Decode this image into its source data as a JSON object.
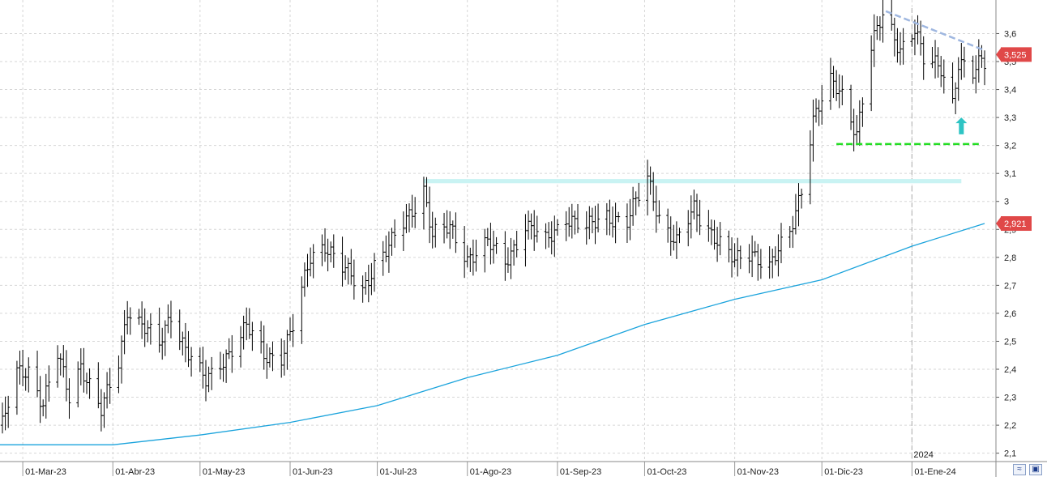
{
  "chart_data": {
    "type": "ohlc",
    "title": "",
    "xlabel": "",
    "ylabel": "",
    "ylim": [
      2.07,
      3.72
    ],
    "y_ticks": [
      "2,1",
      "2,2",
      "2,3",
      "2,4",
      "2,5",
      "2,6",
      "2,7",
      "2,8",
      "2,9",
      "3",
      "3,1",
      "3,2",
      "3,3",
      "3,4",
      "3,5",
      "3,6"
    ],
    "x_ticks": [
      "01-Mar-23",
      "01-Abr-23",
      "01-May-23",
      "01-Jun-23",
      "01-Jul-23",
      "01-Ago-23",
      "01-Sep-23",
      "01-Oct-23",
      "01-Nov-23",
      "01-Dic-23",
      "01-Ene-24"
    ],
    "year_label": "2024",
    "last_price_label": "3,525",
    "ma_label": "2,921",
    "grid": true,
    "colors": {
      "bars": "#000000",
      "moving_average": "#1aa3dc",
      "resistance_band": "#c9f3f3",
      "support_line": "#22dd22",
      "trend_line": "#9fb7e0",
      "arrow": "#2ec4c4",
      "price_tag": "#e04848"
    },
    "series": [
      {
        "kind": "price_anchors",
        "points": [
          [
            "2023-02-22",
            2.2
          ],
          [
            "2023-02-27",
            2.38
          ],
          [
            "2023-03-03",
            2.4
          ],
          [
            "2023-03-08",
            2.28
          ],
          [
            "2023-03-13",
            2.45
          ],
          [
            "2023-03-17",
            2.3
          ],
          [
            "2023-03-21",
            2.42
          ],
          [
            "2023-03-28",
            2.25
          ],
          [
            "2023-04-03",
            2.42
          ],
          [
            "2023-04-06",
            2.62
          ],
          [
            "2023-04-12",
            2.55
          ],
          [
            "2023-04-17",
            2.48
          ],
          [
            "2023-04-21",
            2.6
          ],
          [
            "2023-04-26",
            2.48
          ],
          [
            "2023-05-03",
            2.35
          ],
          [
            "2023-05-10",
            2.45
          ],
          [
            "2023-05-17",
            2.55
          ],
          [
            "2023-05-23",
            2.45
          ],
          [
            "2023-05-29",
            2.45
          ],
          [
            "2023-06-02",
            2.55
          ],
          [
            "2023-06-08",
            2.8
          ],
          [
            "2023-06-13",
            2.85
          ],
          [
            "2023-06-20",
            2.75
          ],
          [
            "2023-06-26",
            2.68
          ],
          [
            "2023-06-30",
            2.78
          ],
          [
            "2023-07-06",
            2.85
          ],
          [
            "2023-07-12",
            2.95
          ],
          [
            "2023-07-17",
            3.05
          ],
          [
            "2023-07-20",
            2.88
          ],
          [
            "2023-07-26",
            2.9
          ],
          [
            "2023-08-01",
            2.8
          ],
          [
            "2023-08-08",
            2.85
          ],
          [
            "2023-08-14",
            2.78
          ],
          [
            "2023-08-21",
            2.92
          ],
          [
            "2023-08-28",
            2.85
          ],
          [
            "2023-09-04",
            2.95
          ],
          [
            "2023-09-11",
            2.9
          ],
          [
            "2023-09-18",
            2.95
          ],
          [
            "2023-09-25",
            2.93
          ],
          [
            "2023-10-02",
            3.08
          ],
          [
            "2023-10-06",
            2.95
          ],
          [
            "2023-10-12",
            2.85
          ],
          [
            "2023-10-18",
            2.97
          ],
          [
            "2023-10-25",
            2.88
          ],
          [
            "2023-11-01",
            2.78
          ],
          [
            "2023-11-07",
            2.82
          ],
          [
            "2023-11-13",
            2.77
          ],
          [
            "2023-11-20",
            2.88
          ],
          [
            "2023-11-24",
            3.05
          ],
          [
            "2023-11-28",
            3.3
          ],
          [
            "2023-12-04",
            3.42
          ],
          [
            "2023-12-08",
            3.38
          ],
          [
            "2023-12-13",
            3.25
          ],
          [
            "2023-12-18",
            3.55
          ],
          [
            "2023-12-22",
            3.66
          ],
          [
            "2023-12-28",
            3.55
          ],
          [
            "2024-01-02",
            3.62
          ],
          [
            "2024-01-05",
            3.5
          ],
          [
            "2024-01-11",
            3.48
          ],
          [
            "2024-01-15",
            3.36
          ],
          [
            "2024-01-17",
            3.5
          ],
          [
            "2024-01-22",
            3.45
          ],
          [
            "2024-01-25",
            3.5
          ]
        ]
      },
      {
        "kind": "moving_average",
        "points": [
          [
            "2023-02-20",
            2.13
          ],
          [
            "2023-04-01",
            2.13
          ],
          [
            "2023-05-01",
            2.165
          ],
          [
            "2023-06-01",
            2.21
          ],
          [
            "2023-07-01",
            2.27
          ],
          [
            "2023-08-01",
            2.37
          ],
          [
            "2023-09-01",
            2.45
          ],
          [
            "2023-10-01",
            2.56
          ],
          [
            "2023-11-01",
            2.65
          ],
          [
            "2023-12-01",
            2.72
          ],
          [
            "2024-01-01",
            2.84
          ],
          [
            "2024-01-26",
            2.921
          ]
        ]
      }
    ],
    "annotations": {
      "resistance_band": {
        "from": "2023-07-17",
        "to": "2024-01-18",
        "y_low": 3.065,
        "y_high": 3.08
      },
      "support_line": {
        "from": "2023-12-06",
        "to": "2024-01-24",
        "y": 3.205
      },
      "trend_line": {
        "from": "2023-12-23",
        "to": "2024-01-26",
        "y_from": 3.68,
        "y_to": 3.54
      },
      "arrow": {
        "date": "2024-01-18",
        "y_base": 3.24,
        "y_tip": 3.3
      },
      "year_separator": "2024-01-01"
    }
  }
}
